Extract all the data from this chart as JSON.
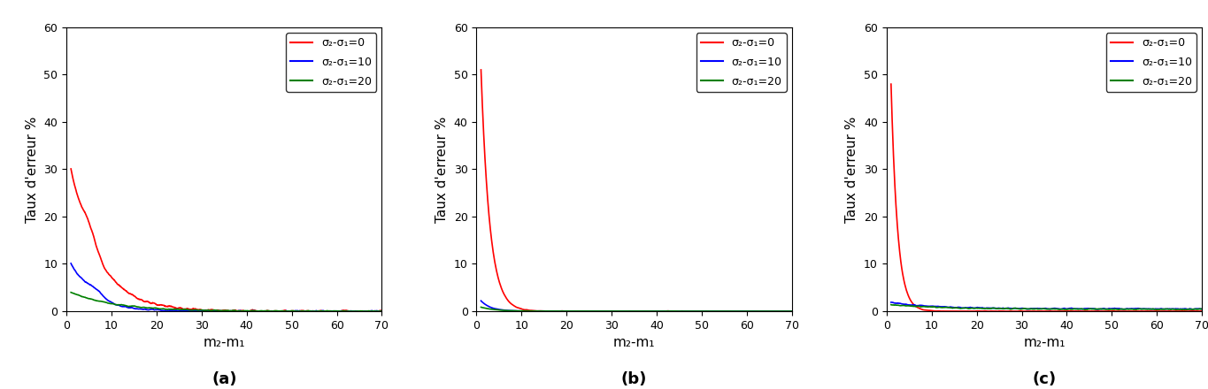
{
  "xlim": [
    1,
    70
  ],
  "ylim": [
    0,
    60
  ],
  "xticks": [
    0,
    10,
    20,
    30,
    40,
    50,
    60,
    70
  ],
  "yticks": [
    0,
    10,
    20,
    30,
    40,
    50,
    60
  ],
  "xlabel": "m₂-m₁",
  "ylabel": "Taux d'erreur %",
  "legend_labels": [
    "σ₂-σ₁=0",
    "σ₂-σ₁=10",
    "σ₂-σ₁=20"
  ],
  "sublabels": [
    "(a)",
    "(b)",
    "(c)"
  ],
  "fig_facecolor": "#ffffff",
  "panel_a": {
    "red_start": 30,
    "red_peak_x": 4.5,
    "red_decay": 0.16,
    "blue_start": 10,
    "blue_peak_x": 6.0,
    "blue_decay": 0.2,
    "green_start": 4.0,
    "green_decay": 0.1,
    "noise_red": 0.35,
    "noise_blue": 0.25,
    "noise_green": 0.15
  },
  "panel_b": {
    "red_start": 51,
    "red_decay": 0.52,
    "blue_start": 2.2,
    "blue_decay": 0.45,
    "green_start": 0.85,
    "green_decay": 0.3,
    "noise_red": 0.08,
    "noise_blue": 0.05,
    "noise_green": 0.03
  },
  "panel_c": {
    "red_start": 48,
    "red_decay": 0.7,
    "blue_floor": 1.3,
    "blue_decay": 0.1,
    "green_floor": 1.0,
    "green_decay": 0.08,
    "noise_red": 0.1,
    "noise_blue": 0.18,
    "noise_green": 0.18
  }
}
